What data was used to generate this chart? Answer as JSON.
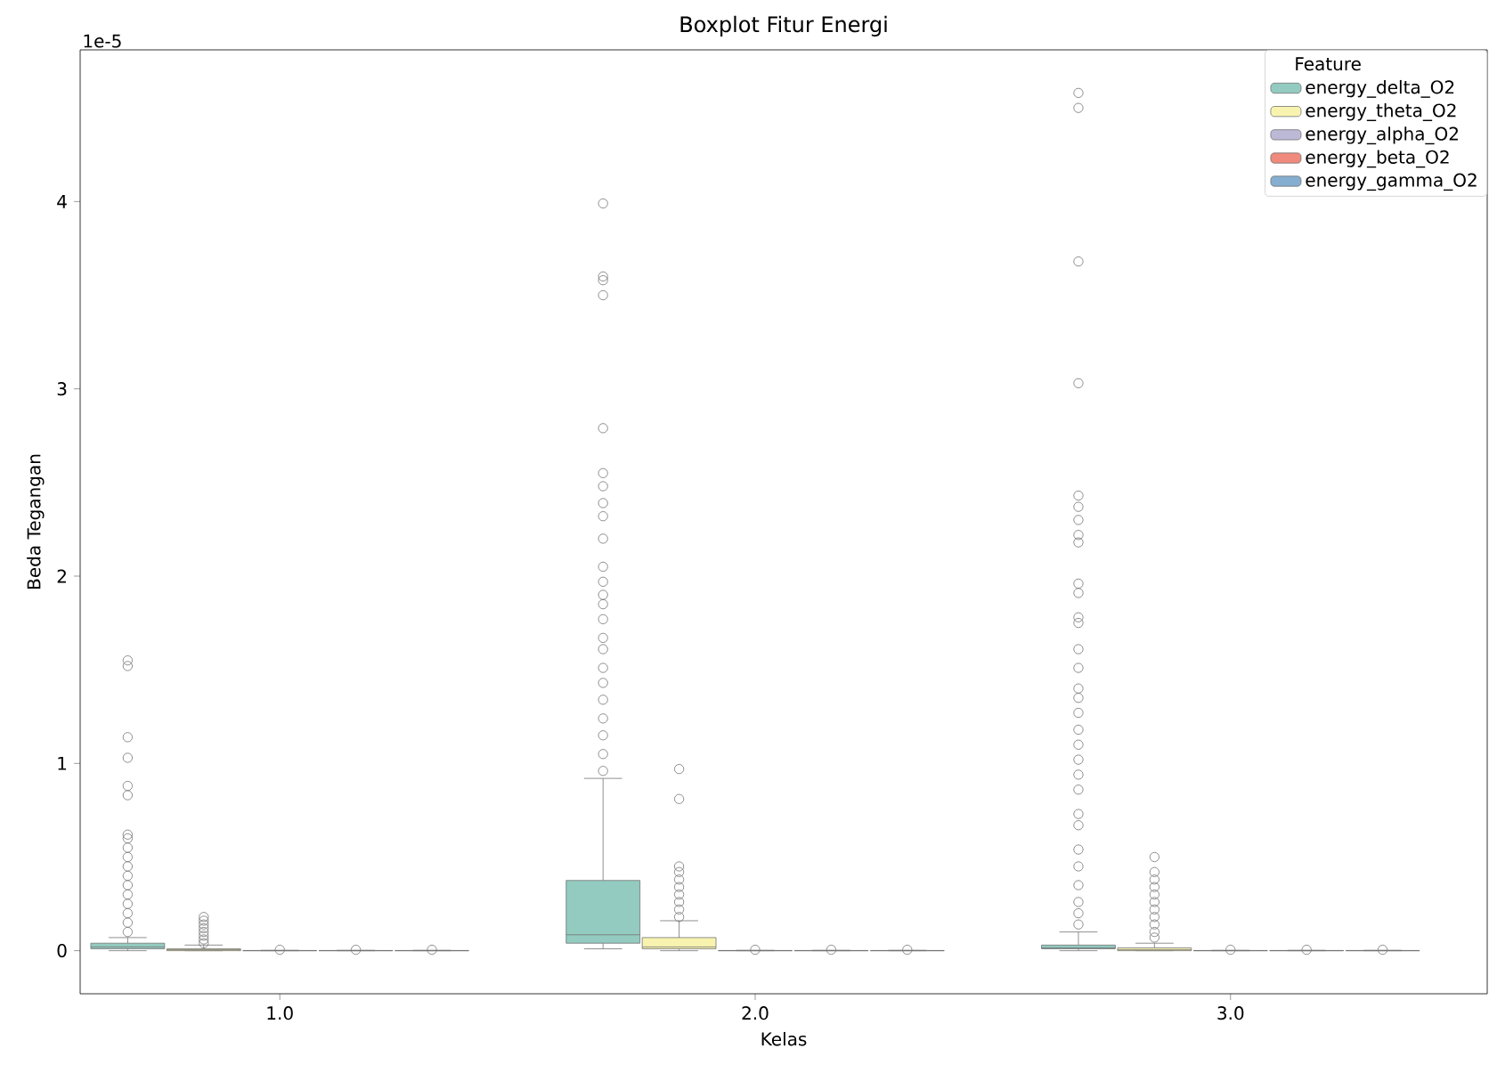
{
  "chart_data": {
    "type": "box",
    "title": "Boxplot Fitur Energi",
    "xlabel": "Kelas",
    "ylabel": "Beda Tegangan",
    "legend_title": "Feature",
    "annotations": [
      "1e-5"
    ],
    "categories": [
      "1.0",
      "2.0",
      "3.0"
    ],
    "ylim": [
      -0.23,
      4.81
    ],
    "yticks": [
      0,
      1,
      2,
      3,
      4
    ],
    "legend": "top right",
    "marker": "circle",
    "series": [
      {
        "name": "energy_delta_O2",
        "color": "#93cbc0",
        "boxes": [
          {
            "low": 0,
            "q1": 0.01,
            "median": 0.02,
            "q3": 0.04,
            "high": 0.07,
            "outliers": [
              1.55,
              1.52,
              1.14,
              1.03,
              0.88,
              0.83,
              0.62,
              0.6,
              0.55,
              0.5,
              0.45,
              0.4,
              0.35,
              0.3,
              0.25,
              0.2,
              0.15,
              0.1
            ]
          },
          {
            "low": 0.01,
            "q1": 0.04,
            "median": 0.085,
            "q3": 0.375,
            "high": 0.92,
            "outliers": [
              3.99,
              3.6,
              3.58,
              3.5,
              2.79,
              2.55,
              2.48,
              2.39,
              2.32,
              2.2,
              2.05,
              1.97,
              1.9,
              1.85,
              1.77,
              1.67,
              1.61,
              1.51,
              1.43,
              1.34,
              1.24,
              1.15,
              1.05,
              0.96
            ]
          },
          {
            "low": 0,
            "q1": 0.01,
            "median": 0.015,
            "q3": 0.03,
            "high": 0.1,
            "outliers": [
              4.58,
              4.5,
              3.68,
              3.03,
              2.43,
              2.37,
              2.3,
              2.22,
              2.18,
              1.96,
              1.91,
              1.78,
              1.75,
              1.61,
              1.51,
              1.4,
              1.35,
              1.27,
              1.18,
              1.1,
              1.02,
              0.94,
              0.86,
              0.73,
              0.67,
              0.54,
              0.45,
              0.35,
              0.26,
              0.2,
              0.14
            ]
          }
        ]
      },
      {
        "name": "energy_theta_O2",
        "color": "#f8f4b0",
        "boxes": [
          {
            "low": 0,
            "q1": 0,
            "median": 0.005,
            "q3": 0.01,
            "high": 0.03,
            "outliers": [
              0.18,
              0.16,
              0.14,
              0.12,
              0.1,
              0.08,
              0.06,
              0.04
            ]
          },
          {
            "low": 0,
            "q1": 0.01,
            "median": 0.02,
            "q3": 0.07,
            "high": 0.16,
            "outliers": [
              0.97,
              0.81,
              0.45,
              0.42,
              0.38,
              0.34,
              0.3,
              0.26,
              0.22,
              0.18
            ]
          },
          {
            "low": 0,
            "q1": 0,
            "median": 0.005,
            "q3": 0.015,
            "high": 0.04,
            "outliers": [
              0.5,
              0.42,
              0.38,
              0.34,
              0.3,
              0.26,
              0.22,
              0.18,
              0.14,
              0.1,
              0.07
            ]
          }
        ]
      },
      {
        "name": "energy_alpha_O2",
        "color": "#bcb9d6",
        "boxes": [
          {
            "low": 0,
            "q1": 0,
            "median": 0,
            "q3": 0.001,
            "high": 0.002,
            "outliers": [
              0.005
            ]
          },
          {
            "low": 0,
            "q1": 0,
            "median": 0,
            "q3": 0.001,
            "high": 0.002,
            "outliers": [
              0.005
            ]
          },
          {
            "low": 0,
            "q1": 0,
            "median": 0,
            "q3": 0.001,
            "high": 0.002,
            "outliers": [
              0.005
            ]
          }
        ]
      },
      {
        "name": "energy_beta_O2",
        "color": "#ef8a7d",
        "boxes": [
          {
            "low": 0,
            "q1": 0,
            "median": 0,
            "q3": 0.001,
            "high": 0.002,
            "outliers": [
              0.005
            ]
          },
          {
            "low": 0,
            "q1": 0,
            "median": 0,
            "q3": 0.001,
            "high": 0.002,
            "outliers": [
              0.005
            ]
          },
          {
            "low": 0,
            "q1": 0,
            "median": 0,
            "q3": 0.001,
            "high": 0.002,
            "outliers": [
              0.005
            ]
          }
        ]
      },
      {
        "name": "energy_gamma_O2",
        "color": "#86aed0",
        "boxes": [
          {
            "low": 0,
            "q1": 0,
            "median": 0,
            "q3": 0.001,
            "high": 0.002,
            "outliers": [
              0.005
            ]
          },
          {
            "low": 0,
            "q1": 0,
            "median": 0,
            "q3": 0.001,
            "high": 0.002,
            "outliers": [
              0.005
            ]
          },
          {
            "low": 0,
            "q1": 0,
            "median": 0,
            "q3": 0.001,
            "high": 0.002,
            "outliers": [
              0.005
            ]
          }
        ]
      }
    ]
  }
}
